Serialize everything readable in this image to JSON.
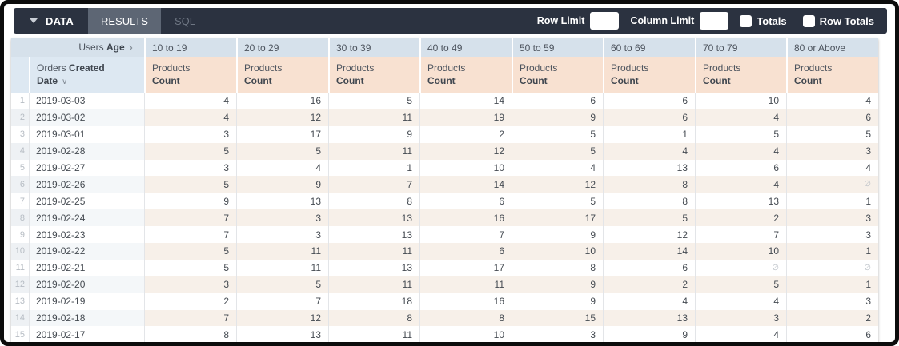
{
  "toolbar": {
    "tabs": [
      {
        "label": "DATA"
      },
      {
        "label": "RESULTS"
      },
      {
        "label": "SQL"
      }
    ],
    "row_limit": {
      "label": "Row Limit",
      "value": ""
    },
    "column_limit": {
      "label": "Column Limit",
      "value": ""
    },
    "totals": {
      "label": "Totals",
      "checked": false
    },
    "row_totals": {
      "label": "Row Totals",
      "checked": false
    }
  },
  "table": {
    "pivot_header": {
      "prefix": "Users",
      "field": "Age"
    },
    "row_header": {
      "prefix": "Orders",
      "field": "Created Date"
    },
    "measure_header": {
      "prefix": "Products",
      "field": "Count"
    },
    "age_buckets": [
      "10 to 19",
      "20 to 29",
      "30 to 39",
      "40 to 49",
      "50 to 59",
      "60 to 69",
      "70 to 79",
      "80 or Above"
    ],
    "null_symbol": "∅",
    "rows": [
      {
        "n": 1,
        "date": "2019-03-03",
        "values": [
          4,
          16,
          5,
          14,
          6,
          6,
          10,
          4
        ]
      },
      {
        "n": 2,
        "date": "2019-03-02",
        "values": [
          4,
          12,
          11,
          19,
          9,
          6,
          4,
          6
        ]
      },
      {
        "n": 3,
        "date": "2019-03-01",
        "values": [
          3,
          17,
          9,
          2,
          5,
          1,
          5,
          5
        ]
      },
      {
        "n": 4,
        "date": "2019-02-28",
        "values": [
          5,
          5,
          11,
          12,
          5,
          4,
          4,
          3
        ]
      },
      {
        "n": 5,
        "date": "2019-02-27",
        "values": [
          3,
          4,
          1,
          10,
          4,
          13,
          6,
          4
        ]
      },
      {
        "n": 6,
        "date": "2019-02-26",
        "values": [
          5,
          9,
          7,
          14,
          12,
          8,
          4,
          null
        ]
      },
      {
        "n": 7,
        "date": "2019-02-25",
        "values": [
          9,
          13,
          8,
          6,
          5,
          8,
          13,
          1
        ]
      },
      {
        "n": 8,
        "date": "2019-02-24",
        "values": [
          7,
          3,
          13,
          16,
          17,
          5,
          2,
          3
        ]
      },
      {
        "n": 9,
        "date": "2019-02-23",
        "values": [
          7,
          3,
          13,
          7,
          9,
          12,
          7,
          3
        ]
      },
      {
        "n": 10,
        "date": "2019-02-22",
        "values": [
          5,
          11,
          11,
          6,
          10,
          14,
          10,
          1
        ]
      },
      {
        "n": 11,
        "date": "2019-02-21",
        "values": [
          5,
          11,
          13,
          17,
          8,
          6,
          null,
          null
        ]
      },
      {
        "n": 12,
        "date": "2019-02-20",
        "values": [
          3,
          5,
          11,
          11,
          9,
          2,
          5,
          1
        ]
      },
      {
        "n": 13,
        "date": "2019-02-19",
        "values": [
          2,
          7,
          18,
          16,
          9,
          4,
          4,
          3
        ]
      },
      {
        "n": 14,
        "date": "2019-02-18",
        "values": [
          7,
          12,
          8,
          8,
          15,
          13,
          3,
          2
        ]
      },
      {
        "n": 15,
        "date": "2019-02-17",
        "values": [
          8,
          13,
          11,
          10,
          3,
          9,
          4,
          6
        ]
      }
    ]
  },
  "icons": {
    "pivot_chevron": "›",
    "sort_caret": "∨"
  },
  "colors": {
    "toolbar_bg": "#2b3240",
    "active_tab_bg": "#5d6674",
    "header_row1_bg": "#d6e1eb",
    "header_row2_bg": "#dde8f2",
    "measure_header_bg": "#f8e1d1",
    "stripe_data_bg": "#f7f0e9",
    "stripe_date_bg": "#f4f7f9"
  }
}
